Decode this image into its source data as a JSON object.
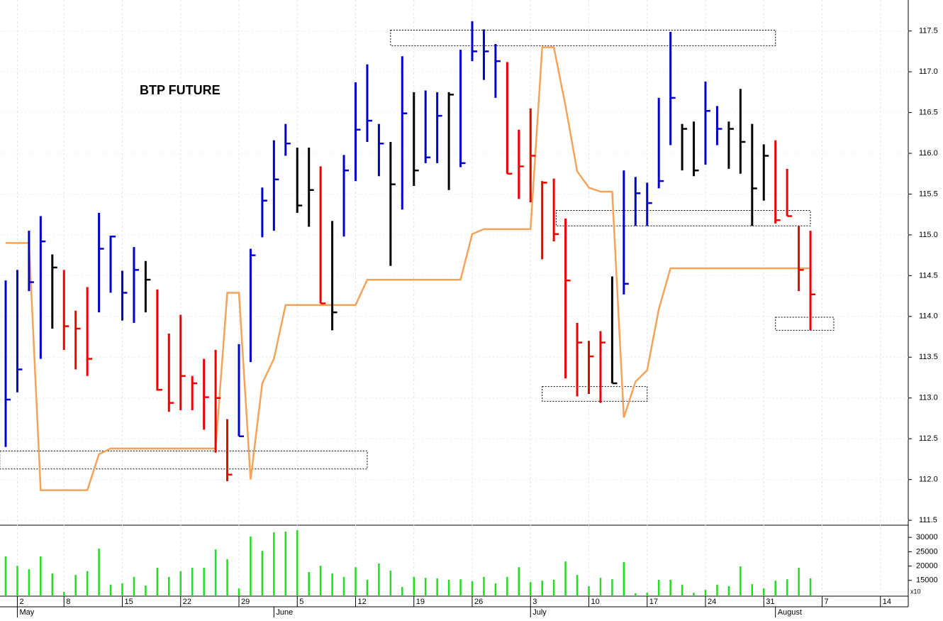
{
  "chart_data": {
    "type": "ohlc",
    "title": "BTP FUTURE",
    "categories": [
      null,
      "2",
      null,
      null,
      null,
      "8",
      null,
      null,
      null,
      null,
      "15",
      null,
      null,
      null,
      null,
      "22",
      null,
      null,
      null,
      null,
      "29",
      null,
      null,
      null,
      null,
      "5",
      null,
      null,
      null,
      null,
      "12",
      null,
      null,
      null,
      null,
      "19",
      null,
      null,
      null,
      null,
      "26",
      null,
      null,
      null,
      null,
      "3",
      null,
      null,
      null,
      null,
      "10",
      null,
      null,
      null,
      null,
      "17",
      null,
      null,
      null,
      null,
      "24",
      null,
      null,
      null,
      null,
      "31",
      null,
      null,
      null,
      null,
      "7",
      null,
      null,
      null,
      null,
      "14"
    ],
    "month_labels": [
      {
        "value": 1,
        "label": "May"
      },
      {
        "value": 23,
        "label": "June"
      },
      {
        "value": 45,
        "label": "July"
      },
      {
        "value": 66,
        "label": "August"
      }
    ],
    "high": [
      114.44,
      114.57,
      115.05,
      115.23,
      114.76,
      114.57,
      114.07,
      114.36,
      115.27,
      114.99,
      114.56,
      114.85,
      114.68,
      114.33,
      113.79,
      114.02,
      113.27,
      113.48,
      113.59,
      112.74,
      113.66,
      114.83,
      115.58,
      116.16,
      116.36,
      116.07,
      116.07,
      115.84,
      115.17,
      115.98,
      116.87,
      117.09,
      116.36,
      116.14,
      117.19,
      116.75,
      116.77,
      116.75,
      116.75,
      117.27,
      117.62,
      117.52,
      117.34,
      117.12,
      116.29,
      116.55,
      115.66,
      115.69,
      115.2,
      113.92,
      113.7,
      113.82,
      114.49,
      115.79,
      115.71,
      115.64,
      116.68,
      117.49,
      116.36,
      116.39,
      116.88,
      116.58,
      116.39,
      116.79,
      116.36,
      116.11,
      116.16,
      115.81,
      115.11,
      115.05,
      null,
      null,
      null,
      null,
      null,
      null
    ],
    "low": [
      112.4,
      113.07,
      114.31,
      113.48,
      113.85,
      113.59,
      113.35,
      113.27,
      114.05,
      114.29,
      113.95,
      113.92,
      114.05,
      113.09,
      112.83,
      112.85,
      112.85,
      112.61,
      112.33,
      111.98,
      112.53,
      113.44,
      114.97,
      115.05,
      115.97,
      115.27,
      115.1,
      114.16,
      113.83,
      114.98,
      115.66,
      116.14,
      115.72,
      114.62,
      115.31,
      115.6,
      115.88,
      115.88,
      115.55,
      115.83,
      117.13,
      116.9,
      116.68,
      115.75,
      115.44,
      115.4,
      114.7,
      114.92,
      113.24,
      113.02,
      113.05,
      112.94,
      113.18,
      114.27,
      115.11,
      115.11,
      115.57,
      116.1,
      115.79,
      115.72,
      115.86,
      116.1,
      115.81,
      115.75,
      115.11,
      115.42,
      115.14,
      115.23,
      114.31,
      113.83,
      null,
      null,
      null,
      null,
      null,
      null
    ],
    "close": [
      112.98,
      113.35,
      114.42,
      114.92,
      114.6,
      113.88,
      113.85,
      113.48,
      114.83,
      114.98,
      114.29,
      114.57,
      114.45,
      113.1,
      112.94,
      113.27,
      113.18,
      113.01,
      113.0,
      112.06,
      112.53,
      114.75,
      115.42,
      115.68,
      116.12,
      115.36,
      115.55,
      114.16,
      114.05,
      115.79,
      116.29,
      116.4,
      116.12,
      115.62,
      116.49,
      115.79,
      115.95,
      116.46,
      116.72,
      115.88,
      117.25,
      117.25,
      117.13,
      115.75,
      115.84,
      115.97,
      115.64,
      115.01,
      114.44,
      113.68,
      113.51,
      113.68,
      113.18,
      114.4,
      115.51,
      115.39,
      115.66,
      116.68,
      116.3,
      115.79,
      116.52,
      116.3,
      116.3,
      116.14,
      115.57,
      115.97,
      115.18,
      115.23,
      114.57,
      114.27,
      null,
      null,
      null,
      null,
      null,
      null
    ],
    "bar_colors": [
      "#0000cc",
      "#0000cc",
      "#0000cc",
      "#0000cc",
      "#000000",
      "#ee0000",
      "#ee0000",
      "#ee0000",
      "#0000cc",
      "#0000cc",
      "#0000cc",
      "#0000cc",
      "#000000",
      "#ee0000",
      "#ee0000",
      "#ee0000",
      "#ee0000",
      "#ee0000",
      "#ee0000",
      "#ee0000",
      "#0000cc",
      "#0000cc",
      "#0000cc",
      "#0000cc",
      "#0000cc",
      "#000000",
      "#000000",
      "#ee0000",
      "#000000",
      "#0000cc",
      "#0000cc",
      "#0000cc",
      "#0000cc",
      "#000000",
      "#0000cc",
      "#000000",
      "#0000cc",
      "#0000cc",
      "#000000",
      "#0000cc",
      "#0000cc",
      "#0000cc",
      "#0000cc",
      "#ee0000",
      "#ee0000",
      "#ee0000",
      "#ee0000",
      "#ee0000",
      "#ee0000",
      "#ee0000",
      "#ee0000",
      "#ee0000",
      "#000000",
      "#0000cc",
      "#0000cc",
      "#0000cc",
      "#0000cc",
      "#0000cc",
      "#000000",
      "#000000",
      "#0000cc",
      "#0000cc",
      "#000000",
      "#000000",
      "#000000",
      "#000000",
      "#ee0000",
      "#ee0000",
      "#ee0000",
      "#ee0000",
      null,
      null,
      null,
      null,
      null,
      null
    ],
    "indicator": {
      "color": "#f5a35a",
      "values": [
        114.9,
        114.9,
        114.9,
        111.87,
        111.87,
        111.87,
        111.87,
        111.87,
        112.31,
        112.38,
        112.38,
        112.38,
        112.38,
        112.38,
        112.38,
        112.38,
        112.38,
        112.38,
        112.38,
        114.29,
        114.29,
        112.0,
        113.18,
        113.48,
        114.14,
        114.14,
        114.14,
        114.14,
        114.14,
        114.14,
        114.14,
        114.45,
        114.45,
        114.45,
        114.45,
        114.45,
        114.45,
        114.45,
        114.45,
        114.45,
        115.01,
        115.07,
        115.07,
        115.07,
        115.07,
        115.07,
        117.3,
        117.3,
        116.58,
        115.78,
        115.58,
        115.53,
        115.53,
        112.76,
        113.2,
        113.34,
        114.09,
        114.59,
        114.59,
        114.59,
        114.59,
        114.59,
        114.59,
        114.59,
        114.59,
        114.59,
        114.59,
        114.59,
        114.59,
        114.59,
        null,
        null,
        null,
        null,
        null,
        null
      ]
    },
    "zones": [
      {
        "from": 33,
        "to": 66,
        "top": 117.51,
        "bottom": 117.32
      },
      {
        "from": -0.5,
        "to": 31,
        "top": 112.35,
        "bottom": 112.13
      },
      {
        "from": 47.2,
        "to": 69,
        "top": 115.3,
        "bottom": 115.11
      },
      {
        "from": 46,
        "to": 55,
        "top": 113.14,
        "bottom": 112.96
      },
      {
        "from": 66,
        "to": 71,
        "top": 113.99,
        "bottom": 113.83
      }
    ],
    "ylim": [
      111.44,
      117.88
    ],
    "yticks": [
      111.5,
      {
        "value": 112,
        "label": "112.0"
      },
      112.5,
      {
        "value": 113,
        "label": "113.0"
      },
      113.5,
      {
        "value": 114,
        "label": "114.0"
      },
      114.5,
      {
        "value": 115,
        "label": "115.0"
      },
      115.5,
      {
        "value": 116,
        "label": "116.0"
      },
      116.5,
      {
        "value": 117,
        "label": "117.0"
      },
      117.5
    ],
    "volume": {
      "color": "#22dd22",
      "values": [
        23360,
        20100,
        18900,
        23360,
        17400,
        11000,
        16900,
        18200,
        26100,
        13500,
        14000,
        16200,
        13200,
        19400,
        16200,
        18200,
        19400,
        19400,
        25800,
        22400,
        12200,
        30300,
        25300,
        31800,
        32000,
        32500,
        17900,
        20100,
        17400,
        16200,
        19600,
        15200,
        20900,
        18400,
        12700,
        16200,
        15900,
        15700,
        15200,
        15400,
        14700,
        16200,
        14000,
        16200,
        19600,
        14400,
        14900,
        15200,
        21600,
        16900,
        13000,
        15900,
        15400,
        21400,
        10500,
        10700,
        15200,
        15200,
        13500,
        10700,
        11700,
        13500,
        13000,
        19900,
        13700,
        12200,
        14900,
        15400,
        19400,
        15700,
        null,
        null,
        null,
        null,
        null,
        null
      ],
      "ylim": [
        9500,
        34000
      ],
      "yticks": [
        15000,
        20000,
        25000,
        30000
      ],
      "scale_label": "x10"
    },
    "grid": true
  }
}
